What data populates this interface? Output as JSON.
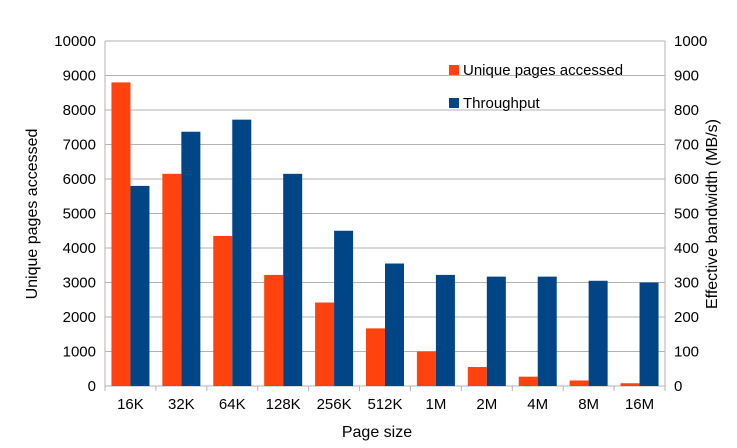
{
  "chart_data": {
    "type": "bar",
    "title": "",
    "xlabel": "Page size",
    "ylabel": "Unique pages accessed",
    "y2label": "Effective bandwidth (MB/s)",
    "categories": [
      "16K",
      "32K",
      "64K",
      "128K",
      "256K",
      "512K",
      "1M",
      "2M",
      "4M",
      "8M",
      "16M"
    ],
    "ylim": [
      0,
      10000
    ],
    "y2lim": [
      0,
      1000
    ],
    "yticks": [
      "0",
      "1000",
      "2000",
      "3000",
      "4000",
      "5000",
      "6000",
      "7000",
      "8000",
      "9000",
      "10000"
    ],
    "y2ticks": [
      "0",
      "100",
      "200",
      "300",
      "400",
      "500",
      "600",
      "700",
      "800",
      "900",
      "1000"
    ],
    "grid": true,
    "legend_position": "top-right",
    "series": [
      {
        "name": "Unique pages accessed",
        "axis": "left",
        "color": "#ff420e",
        "values": [
          8800,
          6150,
          4350,
          3220,
          2420,
          1670,
          1000,
          550,
          270,
          160,
          80
        ]
      },
      {
        "name": "Throughput",
        "axis": "right",
        "color": "#004586",
        "values": [
          580,
          737,
          772,
          615,
          450,
          355,
          322,
          317,
          317,
          305,
          300
        ]
      }
    ]
  }
}
